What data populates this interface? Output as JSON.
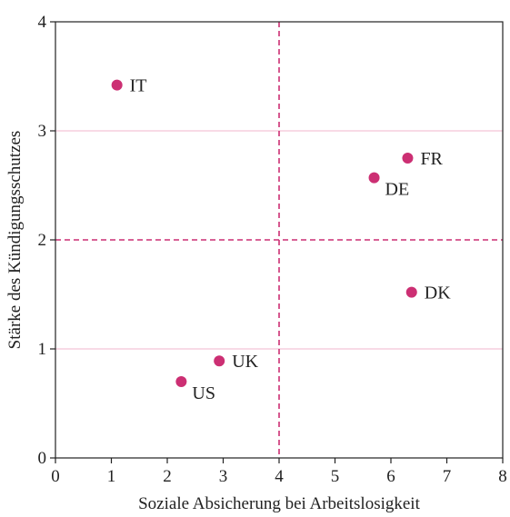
{
  "chart_data": {
    "type": "scatter",
    "title": "",
    "xlabel": "Soziale Absicherung bei Arbeitslosigkeit",
    "ylabel": "Stärke des Kündigungsschutzes",
    "xlim": [
      0,
      8
    ],
    "ylim": [
      0,
      4
    ],
    "x_ticks": [
      "0",
      "1",
      "2",
      "3",
      "4",
      "5",
      "6",
      "7",
      "8"
    ],
    "y_ticks": [
      "0",
      "1",
      "2",
      "3",
      "4"
    ],
    "grid_y": [
      1,
      3
    ],
    "reference_lines": {
      "x": 4,
      "y": 2
    },
    "points": [
      {
        "label": "IT",
        "x": 1.1,
        "y": 3.42,
        "label_pos": "right"
      },
      {
        "label": "FR",
        "x": 6.3,
        "y": 2.75,
        "label_pos": "right"
      },
      {
        "label": "DE",
        "x": 5.7,
        "y": 2.57,
        "label_pos": "below-right"
      },
      {
        "label": "DK",
        "x": 6.37,
        "y": 1.52,
        "label_pos": "right"
      },
      {
        "label": "UK",
        "x": 2.93,
        "y": 0.89,
        "label_pos": "right"
      },
      {
        "label": "US",
        "x": 2.25,
        "y": 0.7,
        "label_pos": "below-right"
      }
    ],
    "colors": {
      "point": "#cc2f73",
      "reference_line": "#cc2f73",
      "grid": "#f2b6cc",
      "axis": "#222222"
    },
    "grid": true,
    "legend": "none"
  }
}
